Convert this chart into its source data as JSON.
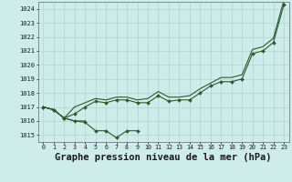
{
  "background_color": "#ceecea",
  "grid_color": "#aed4d0",
  "line_color": "#2d5a2d",
  "marker_color": "#2d5a2d",
  "xlabel": "Graphe pression niveau de la mer (hPa)",
  "xlabel_fontsize": 7.5,
  "ylim": [
    1014.5,
    1024.5
  ],
  "yticks": [
    1015,
    1016,
    1017,
    1018,
    1019,
    1020,
    1021,
    1022,
    1023,
    1024
  ],
  "xtick_labels": [
    "0",
    "1",
    "2",
    "3",
    "4",
    "5",
    "6",
    "7",
    "8",
    "9",
    "10",
    "11",
    "12",
    "13",
    "14",
    "15",
    "16",
    "17",
    "18",
    "19",
    "20",
    "21",
    "22",
    "23"
  ],
  "series1_x": [
    0,
    1,
    2,
    3,
    4,
    5,
    6,
    7,
    8,
    9
  ],
  "series1_y": [
    1017.0,
    1016.8,
    1016.2,
    1016.0,
    1015.9,
    1015.3,
    1015.3,
    1014.8,
    1015.3,
    1015.3
  ],
  "series2_x": [
    0,
    1,
    2,
    3,
    4
  ],
  "series2_y": [
    1017.0,
    1016.8,
    1016.2,
    1016.0,
    1016.0
  ],
  "series3_x": [
    0,
    1,
    2,
    3,
    4,
    5,
    6,
    7,
    8,
    9,
    10,
    11,
    12,
    13,
    14,
    15,
    16,
    17,
    18,
    19,
    20,
    21,
    22,
    23
  ],
  "series3_y": [
    1017.0,
    1016.8,
    1016.2,
    1016.5,
    1017.0,
    1017.4,
    1017.3,
    1017.5,
    1017.5,
    1017.3,
    1017.3,
    1017.8,
    1017.4,
    1017.5,
    1017.5,
    1018.0,
    1018.5,
    1018.8,
    1018.8,
    1019.0,
    1020.8,
    1021.0,
    1021.6,
    1024.3
  ],
  "series4_x": [
    0,
    1,
    2,
    3,
    4,
    5,
    6,
    7,
    8,
    9,
    10,
    11,
    12,
    13,
    14,
    15,
    16,
    17,
    18,
    19,
    20,
    21,
    22,
    23
  ],
  "series4_y": [
    1017.0,
    1016.8,
    1016.2,
    1017.0,
    1017.3,
    1017.6,
    1017.5,
    1017.7,
    1017.7,
    1017.5,
    1017.6,
    1018.1,
    1017.7,
    1017.7,
    1017.8,
    1018.3,
    1018.7,
    1019.1,
    1019.1,
    1019.3,
    1021.1,
    1021.3,
    1021.9,
    1024.6
  ]
}
